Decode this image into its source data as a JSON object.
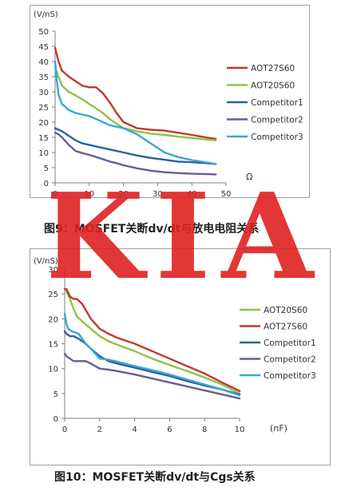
{
  "charts": [
    {
      "caption": "图9：MOSFET关断dv/dt与放电电阻关系",
      "chart_data": {
        "type": "line",
        "ylabel": "(V/nS)",
        "xlabel": "Ω",
        "xlim": [
          0,
          50
        ],
        "ylim": [
          0,
          50
        ],
        "xticks": [
          "0",
          "10",
          "20",
          "30",
          "40",
          "50"
        ],
        "yticks": [
          "0",
          "5",
          "10",
          "15",
          "20",
          "25",
          "30",
          "35",
          "40",
          "45",
          "50"
        ],
        "grid": false,
        "legend": "right",
        "series": [
          {
            "name": "AOT27S60",
            "color": "#c0392b",
            "x": [
              0,
              1,
              2,
              4,
              6,
              8,
              10,
              12,
              14,
              16,
              18,
              20,
              24,
              28,
              32,
              36,
              40,
              44,
              47
            ],
            "y": [
              44.5,
              40,
              37,
              35,
              33.5,
              32,
              31.5,
              31.5,
              29.5,
              26.5,
              23,
              20,
              18,
              17.5,
              17.2,
              16.5,
              15.8,
              15,
              14.5
            ]
          },
          {
            "name": "AOT20S60",
            "color": "#8dc34a",
            "x": [
              0,
              1,
              2,
              4,
              6,
              8,
              10,
              12,
              14,
              16,
              18,
              20,
              24,
              28,
              32,
              36,
              40,
              44,
              47
            ],
            "y": [
              38,
              35,
              32,
              30,
              28.8,
              27.5,
              26,
              24.5,
              23,
              21,
              19.5,
              18,
              17,
              16.2,
              15.8,
              15.2,
              14.8,
              14.3,
              14
            ]
          },
          {
            "name": "Competitor1",
            "color": "#2b5fa6",
            "x": [
              0,
              1,
              2,
              4,
              6,
              8,
              10,
              12,
              14,
              16,
              18,
              20,
              24,
              28,
              32,
              36,
              40,
              44,
              47
            ],
            "y": [
              18,
              17.5,
              17,
              15.5,
              14,
              13,
              12.5,
              12,
              11.5,
              11,
              10.5,
              10,
              9,
              8.2,
              7.6,
              7,
              6.8,
              6.5,
              6.2
            ]
          },
          {
            "name": "Competitor2",
            "color": "#6b5b95",
            "x": [
              0,
              1,
              2,
              4,
              6,
              8,
              10,
              12,
              14,
              16,
              18,
              20,
              24,
              28,
              32,
              36,
              40,
              44,
              47
            ],
            "y": [
              16.5,
              16,
              15,
              12.5,
              10.5,
              9.8,
              9.2,
              8.5,
              7.8,
              7,
              6.5,
              5.8,
              4.8,
              4,
              3.5,
              3.2,
              3,
              2.9,
              2.8
            ]
          },
          {
            "name": "Competitor3",
            "color": "#3aa8cf",
            "x": [
              0,
              0.5,
              1,
              2,
              4,
              6,
              8,
              10,
              12,
              14,
              16,
              18,
              20,
              24,
              28,
              32,
              36,
              40,
              44,
              47
            ],
            "y": [
              40,
              34,
              29,
              26,
              24,
              23,
              22.5,
              22,
              21,
              20,
              19,
              18.5,
              18,
              16,
              13,
              10,
              8.5,
              7.5,
              6.8,
              6.2
            ]
          }
        ]
      }
    },
    {
      "caption": "图10：MOSFET关断dv/dt与Cgs关系",
      "chart_data": {
        "type": "line",
        "ylabel": "(V/nS)",
        "xlabel": "(nF)",
        "xlim": [
          0,
          10
        ],
        "ylim": [
          0,
          30
        ],
        "xticks": [
          "0",
          "2",
          "4",
          "6",
          "8",
          "10"
        ],
        "yticks": [
          "0",
          "5",
          "10",
          "15",
          "20",
          "25",
          "30"
        ],
        "grid": false,
        "legend": "right",
        "series": [
          {
            "name": "AOT20S60",
            "color": "#8dc34a",
            "x": [
              0,
              0.1,
              0.3,
              0.5,
              0.7,
              1,
              1.5,
              2,
              2.5,
              3,
              4,
              5,
              6,
              7,
              8,
              9,
              10
            ],
            "y": [
              26,
              25.5,
              24,
              22,
              20.5,
              19.5,
              18,
              16.5,
              15.5,
              14.8,
              13.5,
              12,
              10.7,
              9.5,
              8.2,
              6.8,
              5
            ]
          },
          {
            "name": "AOT27S60",
            "color": "#c0392b",
            "x": [
              0,
              0.1,
              0.3,
              0.5,
              0.7,
              1,
              1.5,
              2,
              2.5,
              3,
              4,
              5,
              6,
              7,
              8,
              9,
              10
            ],
            "y": [
              26,
              26,
              24.5,
              24,
              24,
              23,
              20,
              18,
              17,
              16.2,
              15,
              13.5,
              12,
              10.5,
              9,
              7.2,
              5.5
            ]
          },
          {
            "name": "Competitor1",
            "color": "#2b5fa6",
            "x": [
              0,
              0.1,
              0.3,
              0.5,
              0.8,
              1.2,
              1.5,
              2,
              2.5,
              3,
              4,
              5,
              6,
              7,
              8,
              9,
              10
            ],
            "y": [
              17.5,
              17,
              16.5,
              16.5,
              16,
              15,
              14,
              12.5,
              11.5,
              11,
              10.2,
              9.3,
              8.5,
              7.5,
              6.6,
              5.8,
              4.8
            ]
          },
          {
            "name": "Competitor2",
            "color": "#6b5b95",
            "x": [
              0,
              0.1,
              0.3,
              0.5,
              0.8,
              1.2,
              1.5,
              2,
              2.5,
              3,
              4,
              5,
              6,
              7,
              8,
              9,
              10
            ],
            "y": [
              13,
              12.5,
              12,
              11.5,
              11.5,
              11.5,
              11,
              10,
              9.8,
              9.5,
              8.8,
              8,
              7.2,
              6.4,
              5.6,
              4.8,
              4
            ]
          },
          {
            "name": "Competitor3",
            "color": "#3aa8cf",
            "x": [
              0,
              0.1,
              0.2,
              0.4,
              0.8,
              1.2,
              1.5,
              2,
              2.5,
              3,
              4,
              5,
              6,
              7,
              8,
              9,
              10
            ],
            "y": [
              21,
              19,
              18,
              17.5,
              17,
              15,
              14,
              12,
              11.8,
              11.4,
              10.5,
              9.7,
              8.8,
              7.8,
              6.8,
              5.8,
              4.6
            ]
          }
        ]
      }
    }
  ],
  "watermark": "KIA",
  "colors": {
    "watermark": "#e02020",
    "axis": "#7f7f7f",
    "text": "#333333"
  }
}
